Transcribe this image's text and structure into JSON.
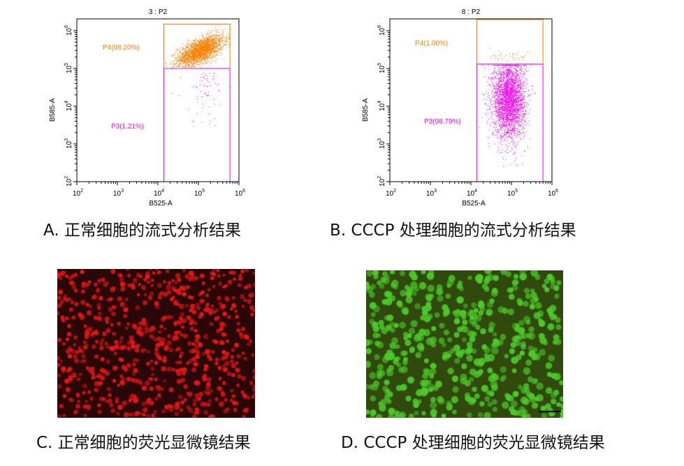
{
  "chart_data": [
    {
      "type": "scatter",
      "title": "3 : P2",
      "xlabel": "B525-A",
      "ylabel": "B585-A",
      "xscale": "log",
      "yscale": "log",
      "xlim": [
        100,
        1000000
      ],
      "ylim": [
        100,
        2000000
      ],
      "xticks": [
        "10^2",
        "10^3",
        "10^4",
        "10^5",
        "10^6"
      ],
      "yticks": [
        "10^2",
        "10^3",
        "10^4",
        "10^5",
        "10^6"
      ],
      "gates": [
        {
          "name": "P4",
          "label": "P4(98.20%)",
          "percent": 98.2,
          "color": "#ff8000",
          "x_range": [
            14000,
            600000
          ],
          "y_range": [
            100000,
            1500000
          ]
        },
        {
          "name": "P3",
          "label": "P3(1.21%)",
          "percent": 1.21,
          "color": "#ff00ff",
          "x_range": [
            14000,
            600000
          ],
          "y_range": [
            100,
            100000
          ]
        }
      ],
      "populations": [
        {
          "gate": "P4",
          "center": [
            110000,
            300000
          ],
          "count": 2600
        },
        {
          "gate": "P3",
          "center": [
            150000,
            40000
          ],
          "count": 70
        }
      ]
    },
    {
      "type": "scatter",
      "title": "8 : P2",
      "xlabel": "B525-A",
      "ylabel": "B585-A",
      "xscale": "log",
      "yscale": "log",
      "xlim": [
        100,
        1000000
      ],
      "ylim": [
        100,
        2000000
      ],
      "xticks": [
        "10^2",
        "10^3",
        "10^4",
        "10^5",
        "10^6"
      ],
      "yticks": [
        "10^2",
        "10^3",
        "10^4",
        "10^5",
        "10^6"
      ],
      "gates": [
        {
          "name": "P4",
          "label": "P4(1.00%)",
          "percent": 1.0,
          "color": "#ff8000",
          "x_range": [
            14000,
            600000
          ],
          "y_range": [
            130000,
            2000000
          ]
        },
        {
          "name": "P3",
          "label": "P3(98.79%)",
          "percent": 98.79,
          "color": "#ff00ff",
          "x_range": [
            14000,
            600000
          ],
          "y_range": [
            100,
            130000
          ]
        }
      ],
      "populations": [
        {
          "gate": "P3",
          "center": [
            85000,
            15000
          ],
          "count": 3200
        },
        {
          "gate": "P4",
          "center": [
            80000,
            170000
          ],
          "count": 45
        }
      ]
    }
  ],
  "captions": {
    "a": "A.  正常细胞的流式分析结果",
    "b": "B. CCCP 处理细胞的流式分析结果",
    "c": "C.  正常细胞的荧光显微镜结果",
    "d": "D. CCCP 处理细胞的荧光显微镜结果"
  },
  "micrographs": {
    "c": {
      "background": "#2a0606",
      "cell_color": "#e01818"
    },
    "d": {
      "background": "#2f4a0c",
      "cell_color": "#4ec82a",
      "scale_bar": true
    }
  }
}
